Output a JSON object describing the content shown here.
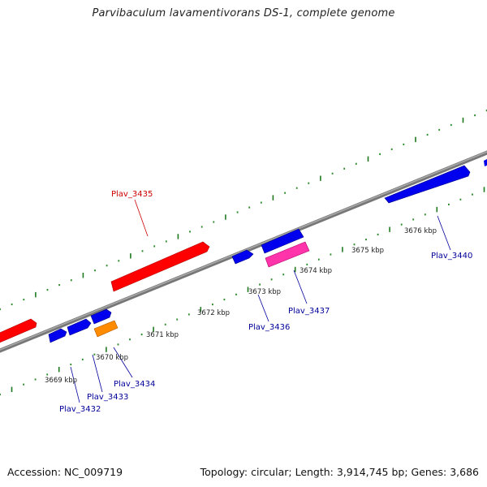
{
  "title": "Parvibaculum lavamentivorans DS-1, complete genome",
  "accession_text": "Accession: NC_009719",
  "topology_text": "Topology: circular; Length: 3,914,745 bp; Genes: 3,686",
  "colors": {
    "backbone": "#888888",
    "tick_dot": "#2e8b2e",
    "tick_major": "#1f7a1f",
    "forward_gene": "#ff0000",
    "reverse_gene": "#0000ee",
    "pink_gene": "#ff33aa",
    "orange_gene": "#ff8c00",
    "red_label": "#cc0000",
    "blue_label": "#000099"
  },
  "kbp_ticks": [
    "3669 kbp",
    "3670 kbp",
    "3671 kbp",
    "3672 kbp",
    "3673 kbp",
    "3674 kbp",
    "3675 kbp",
    "3676 kbp"
  ],
  "gene_labels": [
    "Plav_3435",
    "Plav_3432",
    "Plav_3433",
    "Plav_3434",
    "Plav_3436",
    "Plav_3437",
    "Plav_3440"
  ]
}
